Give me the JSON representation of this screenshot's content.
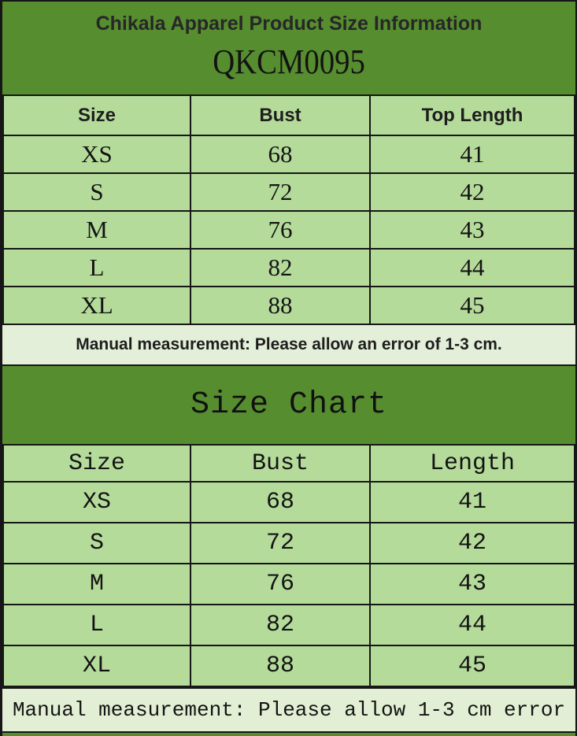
{
  "banner": {
    "title": "Chikala Apparel Product Size Information",
    "product_code": "QKCM0095"
  },
  "colors": {
    "banner_green": "#568d2f",
    "cell_green": "#b5db9b",
    "note_green": "#e3efd8",
    "border": "#161616"
  },
  "table1": {
    "headers": [
      "Size",
      "Bust",
      "Top Length"
    ],
    "rows": [
      [
        "XS",
        "68",
        "41"
      ],
      [
        "S",
        "72",
        "42"
      ],
      [
        "M",
        "76",
        "43"
      ],
      [
        "L",
        "82",
        "44"
      ],
      [
        "XL",
        "88",
        "45"
      ]
    ],
    "note": "Manual measurement: Please allow an error of 1-3 cm."
  },
  "size_chart": {
    "title": "Size Chart",
    "headers": [
      "Size",
      "Bust",
      "Length"
    ],
    "rows": [
      [
        "XS",
        "68",
        "41"
      ],
      [
        "S",
        "72",
        "42"
      ],
      [
        "M",
        "76",
        "43"
      ],
      [
        "L",
        "82",
        "44"
      ],
      [
        "XL",
        "88",
        "45"
      ]
    ],
    "note": "Manual measurement: Please allow 1-3 cm error"
  }
}
